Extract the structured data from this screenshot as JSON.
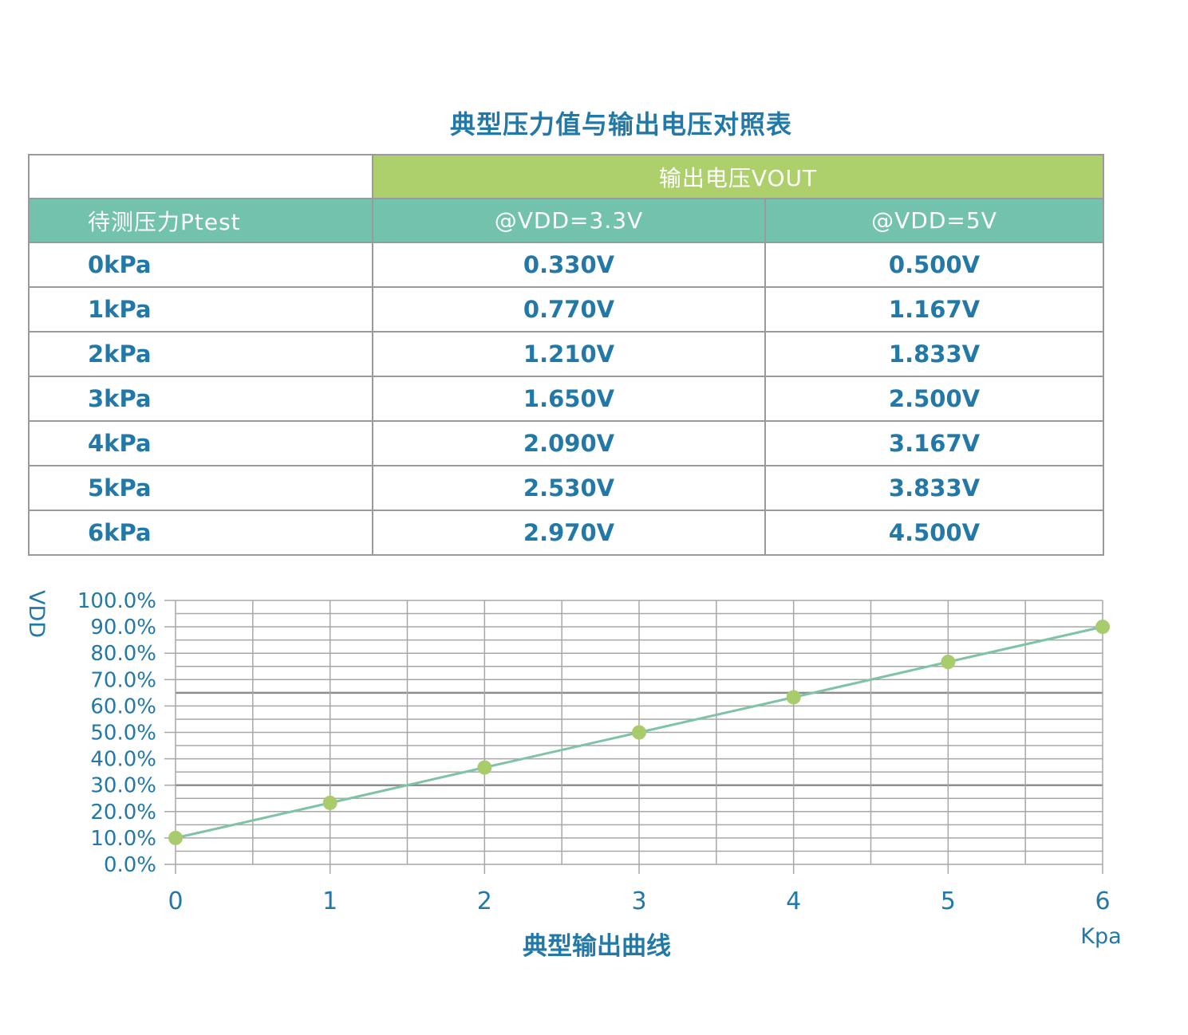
{
  "page_title": "典型压力值与输出电压对照表",
  "table": {
    "group_header": "输出电压VOUT",
    "columns": [
      "待测压力Ptest",
      "@VDD=3.3V",
      "@VDD=5V"
    ],
    "rows": [
      {
        "pressure": "0kPa",
        "vout_3v3": "0.330V",
        "vout_5v": "0.500V"
      },
      {
        "pressure": "1kPa",
        "vout_3v3": "0.770V",
        "vout_5v": "1.167V"
      },
      {
        "pressure": "2kPa",
        "vout_3v3": "1.210V",
        "vout_5v": "1.833V"
      },
      {
        "pressure": "3kPa",
        "vout_3v3": "1.650V",
        "vout_5v": "2.500V"
      },
      {
        "pressure": "4kPa",
        "vout_3v3": "2.090V",
        "vout_5v": "3.167V"
      },
      {
        "pressure": "5kPa",
        "vout_3v3": "2.530V",
        "vout_5v": "3.833V"
      },
      {
        "pressure": "6kPa",
        "vout_3v3": "2.970V",
        "vout_5v": "4.500V"
      }
    ]
  },
  "chart_data": {
    "type": "line",
    "title": "典型输出曲线",
    "xlabel": "Kpa",
    "ylabel": "VDD",
    "x": [
      0,
      1,
      2,
      3,
      4,
      5,
      6
    ],
    "y_pct": [
      10.0,
      23.3,
      36.7,
      50.0,
      63.3,
      76.7,
      90.0
    ],
    "xlim": [
      0,
      6
    ],
    "ylim": [
      0,
      100
    ],
    "xtick_labels": [
      "0",
      "1",
      "2",
      "3",
      "4",
      "5",
      "6"
    ],
    "ytick_labels": [
      "0.0%",
      "10.0%",
      "20.0%",
      "30.0%",
      "40.0%",
      "50.0%",
      "60.0%",
      "70.0%",
      "80.0%",
      "90.0%",
      "100.0%"
    ],
    "grid": {
      "on": true,
      "y_minor_step_pct": 5,
      "x_minor_step": 0.5,
      "bold_y_pct": [
        30,
        65
      ]
    },
    "legend": "none",
    "colors": {
      "line": "#7fc3a6",
      "marker": "#a8cc6c",
      "grid": "#a7a7a7",
      "grid_bold": "#8d8d8d",
      "text": "#2279a7"
    }
  },
  "theme": {
    "blue": "#2279a7",
    "green": "#aed06c",
    "teal": "#72c2ad",
    "border": "#9a9a9a"
  }
}
